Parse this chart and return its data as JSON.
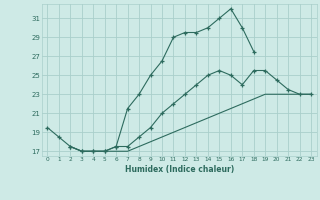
{
  "title": "",
  "xlabel": "Humidex (Indice chaleur)",
  "xlim": [
    -0.5,
    23.5
  ],
  "ylim": [
    16.5,
    32.5
  ],
  "yticks": [
    17,
    19,
    21,
    23,
    25,
    27,
    29,
    31
  ],
  "xticks": [
    0,
    1,
    2,
    3,
    4,
    5,
    6,
    7,
    8,
    9,
    10,
    11,
    12,
    13,
    14,
    15,
    16,
    17,
    18,
    19,
    20,
    21,
    22,
    23
  ],
  "bg_color": "#ceeae6",
  "grid_color": "#aacfcb",
  "line_color": "#2d6b5e",
  "line1_x": [
    0,
    1,
    2,
    3,
    4,
    5,
    6,
    7,
    8,
    9,
    10,
    11,
    12,
    13,
    14,
    15,
    16,
    17,
    18
  ],
  "line1_y": [
    19.5,
    18.5,
    17.5,
    17.0,
    17.0,
    17.0,
    17.5,
    21.5,
    23.0,
    25.0,
    26.5,
    29.0,
    29.5,
    29.5,
    30.0,
    31.0,
    32.0,
    30.0,
    27.5
  ],
  "line2_x": [
    2,
    3,
    4,
    5,
    6,
    7,
    8,
    9,
    10,
    11,
    12,
    13,
    14,
    15,
    16,
    17,
    18,
    19,
    20,
    21,
    22,
    23
  ],
  "line2_y": [
    17.5,
    17.0,
    17.0,
    17.0,
    17.5,
    17.5,
    18.5,
    19.5,
    21.0,
    22.0,
    23.0,
    24.0,
    25.0,
    25.5,
    25.0,
    24.0,
    25.5,
    25.5,
    24.5,
    23.5,
    23.0,
    23.0
  ],
  "line3_x": [
    2,
    3,
    4,
    5,
    6,
    7,
    8,
    9,
    10,
    11,
    12,
    13,
    14,
    15,
    16,
    17,
    18,
    19,
    20,
    21,
    22,
    23
  ],
  "line3_y": [
    17.5,
    17.0,
    17.0,
    17.0,
    17.0,
    17.0,
    17.5,
    18.0,
    18.5,
    19.0,
    19.5,
    20.0,
    20.5,
    21.0,
    21.5,
    22.0,
    22.5,
    23.0,
    23.0,
    23.0,
    23.0,
    23.0
  ]
}
